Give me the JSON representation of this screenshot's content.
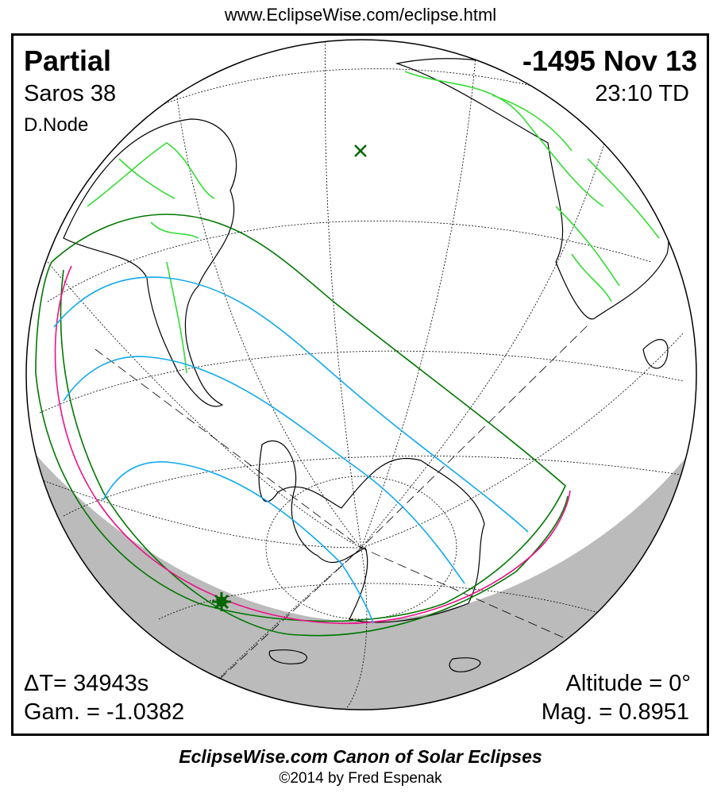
{
  "header": {
    "url": "www.EclipseWise.com/eclipse.html"
  },
  "eclipse": {
    "type": "Partial",
    "date": "-1495 Nov 13",
    "saros": "Saros  38",
    "time": "23:10 TD",
    "node": "D.Node",
    "delta_t": "ΔT=  34943s",
    "altitude": "Altitude =  0°",
    "gamma": "Gam. = -1.0382",
    "magnitude": "Mag. = 0.8951"
  },
  "footer": {
    "title": "EclipseWise.com Canon of Solar Eclipses",
    "copyright": "©2014 by Fred Espenak"
  },
  "colors": {
    "coastline": "#000000",
    "borders": "#33dd33",
    "penumbral_limits": "#007700",
    "magnitude_curves": "#11aaee",
    "rise_set_curve": "#ee1188",
    "night_shading": "#bbbbbb",
    "greatest_eclipse_marker": "#006600"
  }
}
